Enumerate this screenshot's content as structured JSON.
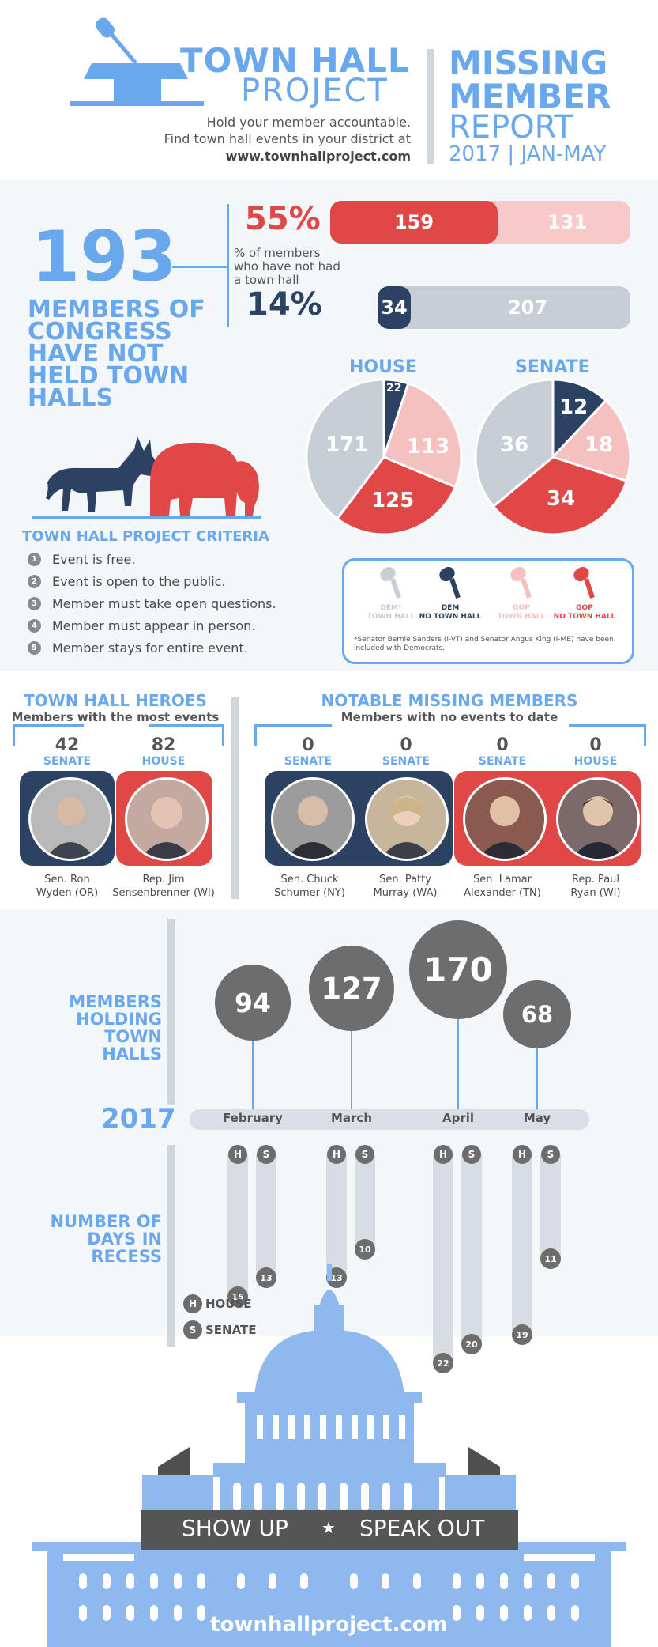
{
  "header": {
    "brand_line1": "TOWN HALL",
    "brand_line2": "PROJECT",
    "tagline1": "Hold your member accountable.",
    "tagline2": "Find town hall events in your district at",
    "url": "www.townhallproject.com",
    "report_line1": "MISSING",
    "report_line2": "MEMBER",
    "report_line3": "REPORT",
    "report_period": "2017 | JAN-MAY"
  },
  "summary": {
    "big_number": "193",
    "big_caption": "MEMBERS OF CONGRESS HAVE NOT HELD TOWN HALLS",
    "pct_gop": "55%",
    "pct_caption": "% of members who have not had a town hall",
    "pct_dem": "14%",
    "gop_missing": 159,
    "gop_held": 131,
    "dem_missing": 34,
    "dem_held": 207
  },
  "pies": {
    "house_title": "HOUSE",
    "senate_title": "SENATE",
    "house": {
      "dem_town_hall": 171,
      "dem_no_town_hall": 22,
      "gop_town_hall": 113,
      "gop_no_town_hall": 125
    },
    "senate": {
      "dem_town_hall": 36,
      "dem_no_town_hall": 12,
      "gop_town_hall": 18,
      "gop_no_town_hall": 34
    }
  },
  "legend": {
    "items": [
      {
        "line1": "DEM*",
        "line2": "TOWN HALL",
        "color": "#c7ced5"
      },
      {
        "line1": "DEM",
        "line2": "NO TOWN HALL",
        "color": "#2c4262"
      },
      {
        "line1": "GOP",
        "line2": "TOWN HALL",
        "color": "#f5c0c0"
      },
      {
        "line1": "GOP",
        "line2": "NO TOWN HALL",
        "color": "#e04848"
      }
    ],
    "footnote": "*Senator Bernie Sanders (I-VT) and Senator Angus King (I-ME) have been included with Democrats."
  },
  "criteria": {
    "title": "TOWN HALL PROJECT CRITERIA",
    "items": [
      {
        "n": "1",
        "text": "Event is free."
      },
      {
        "n": "2",
        "text": "Event is open to the public."
      },
      {
        "n": "3",
        "text": "Member must take open questions."
      },
      {
        "n": "4",
        "text": "Member must appear in person."
      },
      {
        "n": "5",
        "text": "Member stays for entire event."
      }
    ]
  },
  "heroes": {
    "title": "TOWN HALL HEROES",
    "subtitle": "Members with the most events",
    "members": [
      {
        "count": "42",
        "chamber": "SENATE",
        "name1": "Sen. Ron",
        "name2": "Wyden (OR)"
      },
      {
        "count": "82",
        "chamber": "HOUSE",
        "name1": "Rep. Jim",
        "name2": "Sensenbrenner (WI)"
      }
    ]
  },
  "missing": {
    "title": "NOTABLE MISSING MEMBERS",
    "subtitle": "Members with no events to date",
    "members": [
      {
        "count": "0",
        "chamber": "SENATE",
        "name1": "Sen. Chuck",
        "name2": "Schumer (NY)"
      },
      {
        "count": "0",
        "chamber": "SENATE",
        "name1": "Sen. Patty",
        "name2": "Murray (WA)"
      },
      {
        "count": "0",
        "chamber": "SENATE",
        "name1": "Sen. Lamar",
        "name2": "Alexander (TN)"
      },
      {
        "count": "0",
        "chamber": "HOUSE",
        "name1": "Rep. Paul",
        "name2": "Ryan (WI)"
      }
    ]
  },
  "timeline": {
    "members_label": "MEMBERS HOLDING TOWN HALLS",
    "year": "2017",
    "recess_label": "NUMBER OF DAYS IN RECESS",
    "house_key": "HOUSE",
    "senate_key": "SENATE",
    "h_letter": "H",
    "s_letter": "S",
    "months": [
      {
        "name": "February",
        "members": 94,
        "house_days": 15,
        "senate_days": 13
      },
      {
        "name": "March",
        "members": 127,
        "house_days": 13,
        "senate_days": 10
      },
      {
        "name": "April",
        "members": 170,
        "house_days": 22,
        "senate_days": 20
      },
      {
        "name": "May",
        "members": 68,
        "house_days": 19,
        "senate_days": 11
      }
    ]
  },
  "footer": {
    "show_up": "SHOW UP",
    "star": "★",
    "speak_out": "SPEAK OUT",
    "url": "townhallproject.com"
  },
  "colors": {
    "blue": "#6aa8ee",
    "navy": "#2c4262",
    "red": "#e04848",
    "pink": "#f5c0c0",
    "gray": "#c7ced5"
  }
}
